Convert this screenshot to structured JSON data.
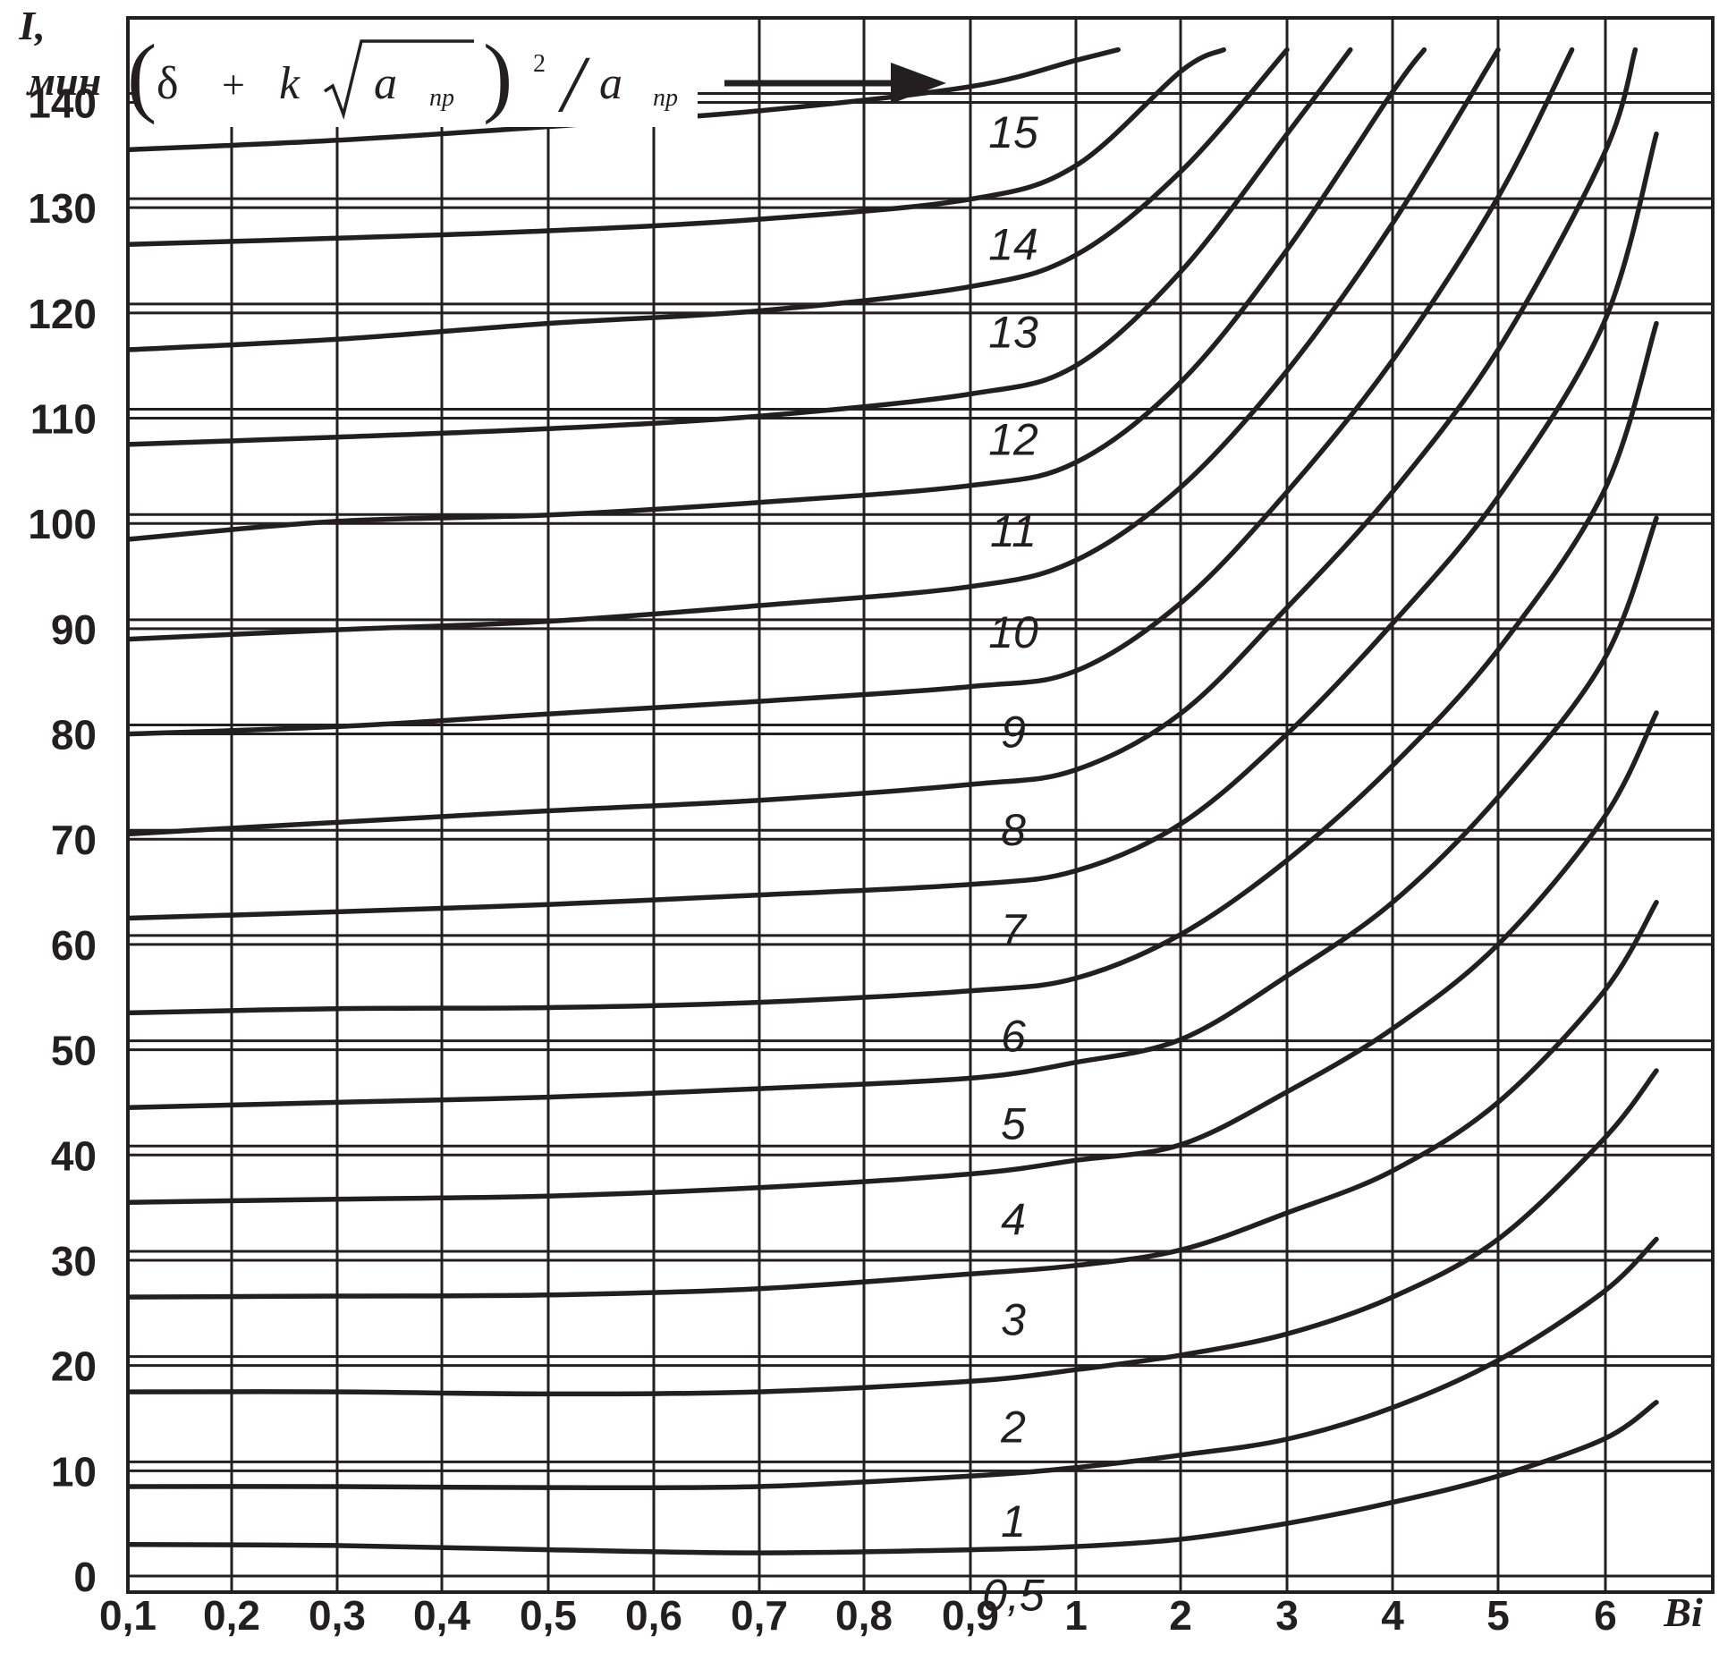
{
  "chart_data": {
    "type": "line",
    "ylabel": "I,",
    "yunit": "мин",
    "xlabel": "Bi",
    "ylim": [
      0,
      145
    ],
    "grid": true,
    "yticks": [
      {
        "v": 0,
        "label": "0"
      },
      {
        "v": 10,
        "label": "10"
      },
      {
        "v": 20,
        "label": "20"
      },
      {
        "v": 30,
        "label": "30"
      },
      {
        "v": 40,
        "label": "40"
      },
      {
        "v": 50,
        "label": "50"
      },
      {
        "v": 60,
        "label": "60"
      },
      {
        "v": 70,
        "label": "70"
      },
      {
        "v": 80,
        "label": "80"
      },
      {
        "v": 90,
        "label": "90"
      },
      {
        "v": 100,
        "label": "100"
      },
      {
        "v": 110,
        "label": "110"
      },
      {
        "v": 120,
        "label": "120"
      },
      {
        "v": 130,
        "label": "130"
      },
      {
        "v": 140,
        "label": "140"
      }
    ],
    "xticks": [
      "0,1",
      "0,2",
      "0,3",
      "0,4",
      "0,5",
      "0,6",
      "0,7",
      "0,8",
      "0,9",
      "1",
      "2",
      "3",
      "4",
      "5",
      "6"
    ],
    "formula": {
      "delta": "δ",
      "plus": "+",
      "k": "k",
      "a": "a",
      "sub": "пр",
      "power": "2",
      "slash": "/"
    },
    "series": [
      {
        "name": "0,5",
        "points": [
          [
            0.1,
            3.0
          ],
          [
            0.3,
            2.9
          ],
          [
            0.5,
            2.5
          ],
          [
            0.7,
            2.2
          ],
          [
            0.9,
            2.5
          ],
          [
            1,
            2.8
          ],
          [
            2,
            3.5
          ],
          [
            3,
            5.0
          ],
          [
            4,
            7.0
          ],
          [
            5,
            9.5
          ],
          [
            6,
            13.0
          ],
          [
            6.5,
            16.5
          ]
        ]
      },
      {
        "name": "1",
        "points": [
          [
            0.1,
            8.5
          ],
          [
            0.3,
            8.5
          ],
          [
            0.5,
            8.4
          ],
          [
            0.7,
            8.5
          ],
          [
            0.9,
            9.5
          ],
          [
            1,
            10.3
          ],
          [
            2,
            11.5
          ],
          [
            3,
            13.0
          ],
          [
            4,
            16.0
          ],
          [
            5,
            20.5
          ],
          [
            6,
            27.0
          ],
          [
            6.5,
            32.0
          ]
        ]
      },
      {
        "name": "2",
        "points": [
          [
            0.1,
            17.5
          ],
          [
            0.3,
            17.5
          ],
          [
            0.5,
            17.3
          ],
          [
            0.7,
            17.5
          ],
          [
            0.9,
            18.5
          ],
          [
            1,
            19.6
          ],
          [
            2,
            21.0
          ],
          [
            3,
            23.0
          ],
          [
            4,
            26.5
          ],
          [
            5,
            32.0
          ],
          [
            6,
            41.5
          ],
          [
            6.5,
            48.0
          ]
        ]
      },
      {
        "name": "3",
        "points": [
          [
            0.1,
            26.5
          ],
          [
            0.3,
            26.6
          ],
          [
            0.5,
            26.7
          ],
          [
            0.7,
            27.3
          ],
          [
            0.9,
            28.7
          ],
          [
            1,
            29.5
          ],
          [
            2,
            31.0
          ],
          [
            3,
            34.5
          ],
          [
            4,
            38.5
          ],
          [
            5,
            45.0
          ],
          [
            6,
            55.5
          ],
          [
            6.5,
            64.0
          ]
        ]
      },
      {
        "name": "4",
        "points": [
          [
            0.1,
            35.5
          ],
          [
            0.3,
            35.8
          ],
          [
            0.5,
            36.1
          ],
          [
            0.7,
            36.9
          ],
          [
            0.9,
            38.2
          ],
          [
            1,
            39.5
          ],
          [
            2,
            41.0
          ],
          [
            3,
            46.0
          ],
          [
            4,
            52.0
          ],
          [
            5,
            60.0
          ],
          [
            6,
            72.0
          ],
          [
            6.5,
            82.0
          ]
        ]
      },
      {
        "name": "5",
        "points": [
          [
            0.1,
            44.5
          ],
          [
            0.3,
            45.0
          ],
          [
            0.5,
            45.5
          ],
          [
            0.7,
            46.3
          ],
          [
            0.9,
            47.3
          ],
          [
            1,
            48.8
          ],
          [
            2,
            51.0
          ],
          [
            3,
            57.0
          ],
          [
            4,
            64.0
          ],
          [
            5,
            74.0
          ],
          [
            6,
            87.0
          ],
          [
            6.5,
            100.5
          ]
        ]
      },
      {
        "name": "6",
        "points": [
          [
            0.1,
            53.5
          ],
          [
            0.3,
            53.9
          ],
          [
            0.5,
            54.0
          ],
          [
            0.7,
            54.5
          ],
          [
            0.9,
            55.6
          ],
          [
            1,
            56.8
          ],
          [
            2,
            61.0
          ],
          [
            3,
            68.0
          ],
          [
            4,
            77.0
          ],
          [
            5,
            88.0
          ],
          [
            6,
            103.0
          ],
          [
            6.5,
            119.0
          ]
        ]
      },
      {
        "name": "7",
        "points": [
          [
            0.1,
            62.5
          ],
          [
            0.3,
            63.1
          ],
          [
            0.5,
            63.8
          ],
          [
            0.7,
            64.7
          ],
          [
            0.9,
            65.7
          ],
          [
            1,
            67.0
          ],
          [
            2,
            71.5
          ],
          [
            3,
            80.0
          ],
          [
            4,
            90.5
          ],
          [
            5,
            102.5
          ],
          [
            6,
            119.0
          ],
          [
            6.5,
            137.0
          ]
        ]
      },
      {
        "name": "8",
        "points": [
          [
            0.1,
            70.5
          ],
          [
            0.3,
            71.6
          ],
          [
            0.5,
            72.7
          ],
          [
            0.7,
            73.7
          ],
          [
            0.9,
            75.2
          ],
          [
            1,
            76.6
          ],
          [
            2,
            82.0
          ],
          [
            3,
            92.0
          ],
          [
            4,
            103.0
          ],
          [
            5,
            116.5
          ],
          [
            6,
            135.0
          ],
          [
            6.3,
            145.0
          ]
        ]
      },
      {
        "name": "9",
        "points": [
          [
            0.1,
            80.0
          ],
          [
            0.3,
            80.7
          ],
          [
            0.5,
            81.9
          ],
          [
            0.7,
            83.1
          ],
          [
            0.9,
            84.5
          ],
          [
            1,
            86.0
          ],
          [
            2,
            92.5
          ],
          [
            3,
            103.0
          ],
          [
            4,
            115.5
          ],
          [
            5,
            131.0
          ],
          [
            5.7,
            145.0
          ]
        ]
      },
      {
        "name": "10",
        "points": [
          [
            0.1,
            89.0
          ],
          [
            0.3,
            89.9
          ],
          [
            0.5,
            90.7
          ],
          [
            0.7,
            92.2
          ],
          [
            0.9,
            94.0
          ],
          [
            1,
            96.5
          ],
          [
            2,
            103.5
          ],
          [
            3,
            114.5
          ],
          [
            4,
            128.5
          ],
          [
            5,
            145.0
          ]
        ]
      },
      {
        "name": "11",
        "points": [
          [
            0.1,
            98.5
          ],
          [
            0.3,
            100.2
          ],
          [
            0.5,
            100.8
          ],
          [
            0.7,
            102.0
          ],
          [
            0.9,
            103.6
          ],
          [
            1,
            105.8
          ],
          [
            2,
            113.5
          ],
          [
            3,
            126.0
          ],
          [
            4,
            141.0
          ],
          [
            4.3,
            145.0
          ]
        ]
      },
      {
        "name": "12",
        "points": [
          [
            0.1,
            107.5
          ],
          [
            0.3,
            108.2
          ],
          [
            0.5,
            109.0
          ],
          [
            0.7,
            110.2
          ],
          [
            0.9,
            112.3
          ],
          [
            1,
            115.0
          ],
          [
            2,
            124.0
          ],
          [
            3,
            137.0
          ],
          [
            3.6,
            145.0
          ]
        ]
      },
      {
        "name": "13",
        "points": [
          [
            0.1,
            116.5
          ],
          [
            0.3,
            117.5
          ],
          [
            0.5,
            119.0
          ],
          [
            0.7,
            120.2
          ],
          [
            0.9,
            122.5
          ],
          [
            1,
            125.5
          ],
          [
            2,
            133.5
          ],
          [
            3,
            145.0
          ]
        ]
      },
      {
        "name": "14",
        "points": [
          [
            0.1,
            126.5
          ],
          [
            0.3,
            127.1
          ],
          [
            0.5,
            127.8
          ],
          [
            0.7,
            128.9
          ],
          [
            0.9,
            130.8
          ],
          [
            1,
            134.0
          ],
          [
            2,
            143.0
          ],
          [
            2.4,
            145.0
          ]
        ]
      },
      {
        "name": "15",
        "points": [
          [
            0.1,
            135.5
          ],
          [
            0.3,
            136.4
          ],
          [
            0.5,
            137.7
          ],
          [
            0.7,
            139.2
          ],
          [
            0.9,
            141.5
          ],
          [
            1,
            144.0
          ],
          [
            1.4,
            145.0
          ]
        ]
      }
    ]
  }
}
